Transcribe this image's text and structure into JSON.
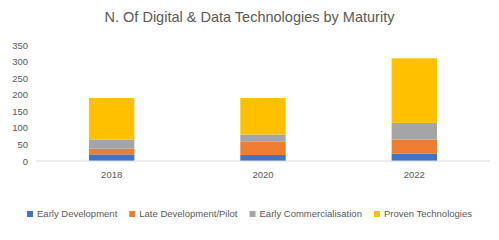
{
  "chart_data": {
    "type": "bar",
    "stacked": true,
    "title": "N. Of Digital & Data Technologies by Maturity",
    "categories": [
      "2018",
      "2020",
      "2022"
    ],
    "series": [
      {
        "name": "Early Development",
        "color": "#4472c4",
        "values": [
          20,
          18,
          22
        ]
      },
      {
        "name": "Late Development/Pilot",
        "color": "#ed7d31",
        "values": [
          17,
          40,
          43
        ]
      },
      {
        "name": "Early Commercialisation",
        "color": "#a5a5a5",
        "values": [
          28,
          22,
          50
        ]
      },
      {
        "name": "Proven Technologies",
        "color": "#ffc000",
        "values": [
          125,
          110,
          195
        ]
      }
    ],
    "ylim": [
      0,
      350
    ],
    "yticks": [
      0,
      50,
      100,
      150,
      200,
      250,
      300,
      350
    ],
    "grid": false,
    "legend": "bottom"
  }
}
